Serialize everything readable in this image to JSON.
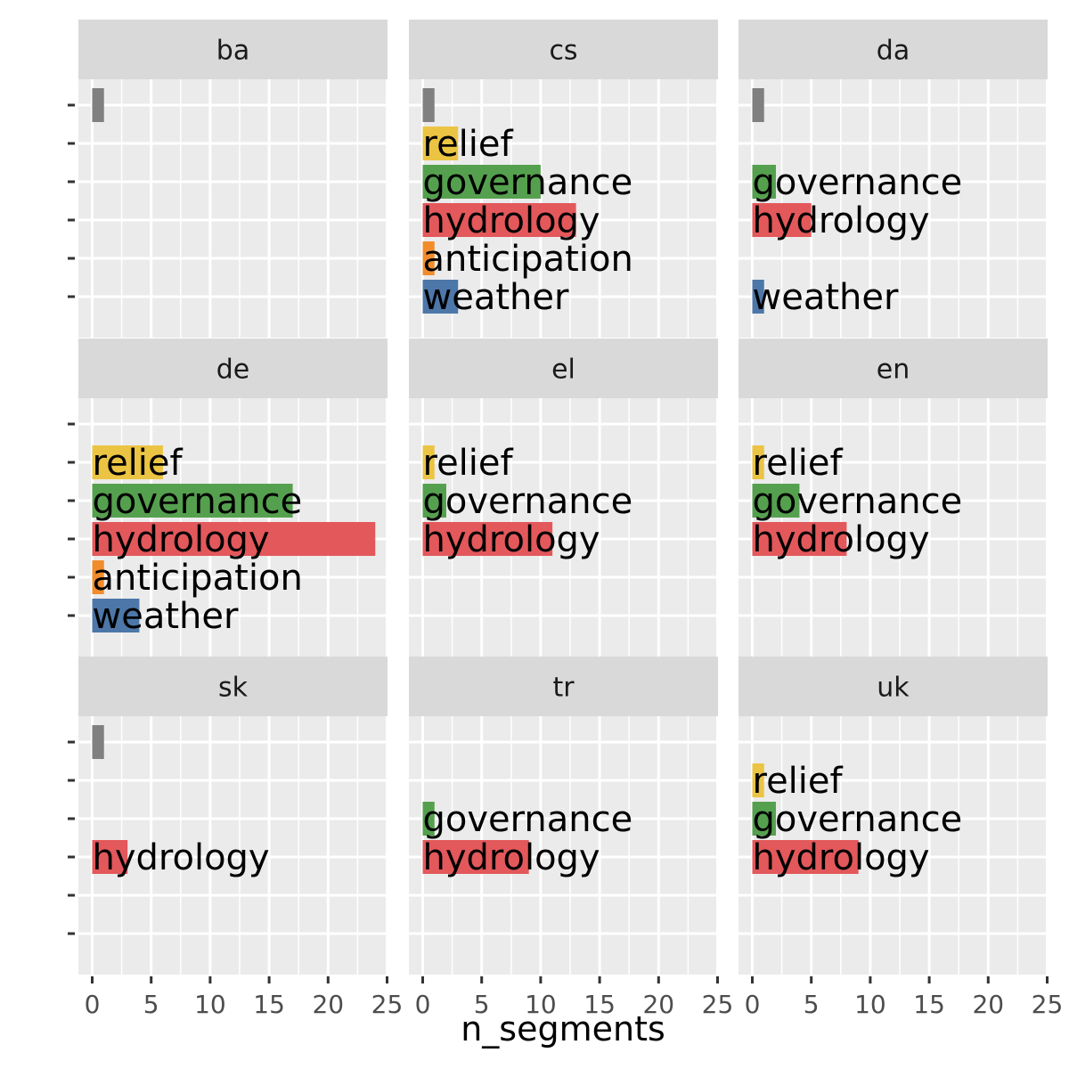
{
  "chart_data": {
    "type": "bar",
    "orientation": "horizontal",
    "facet_layout": "3x3 grid",
    "xlabel": "n_segments",
    "ylabel": "",
    "xlim": [
      0,
      25
    ],
    "x_ticks": [
      0,
      5,
      10,
      15,
      20,
      25
    ],
    "grid": true,
    "legend": "none",
    "categories": [
      "",
      "relief",
      "governance",
      "hydrology",
      "anticipation",
      "weather"
    ],
    "category_colors": {
      "": "#808080",
      "relief": "#EBC443",
      "governance": "#55A04E",
      "hydrology": "#E3585B",
      "anticipation": "#F18D2D",
      "weather": "#4D77A8"
    },
    "panel_background": "#EBEBEB",
    "strip_background": "#D9D9D9",
    "grid_color": "#FFFFFF",
    "facets": [
      {
        "name": "ba",
        "values": {
          "": 1
        }
      },
      {
        "name": "cs",
        "values": {
          "": 1,
          "relief": 3,
          "governance": 10,
          "hydrology": 13,
          "anticipation": 1,
          "weather": 3
        }
      },
      {
        "name": "da",
        "values": {
          "": 1,
          "governance": 2,
          "hydrology": 5,
          "weather": 1
        }
      },
      {
        "name": "de",
        "values": {
          "relief": 6,
          "governance": 17,
          "hydrology": 24,
          "anticipation": 1,
          "weather": 4
        }
      },
      {
        "name": "el",
        "values": {
          "relief": 1,
          "governance": 2,
          "hydrology": 11
        }
      },
      {
        "name": "en",
        "values": {
          "relief": 1,
          "governance": 4,
          "hydrology": 8
        }
      },
      {
        "name": "sk",
        "values": {
          "": 1,
          "hydrology": 3
        }
      },
      {
        "name": "tr",
        "values": {
          "governance": 1,
          "hydrology": 9
        }
      },
      {
        "name": "uk",
        "values": {
          "relief": 1,
          "governance": 2,
          "hydrology": 9
        }
      }
    ]
  }
}
